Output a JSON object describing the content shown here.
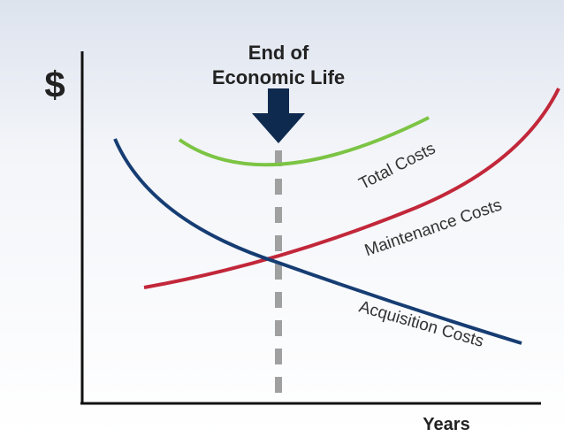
{
  "axis": {
    "y_label": "$",
    "x_label": "Years"
  },
  "marker": {
    "lines": [
      "End of",
      "Economic Life"
    ]
  },
  "curves": [
    {
      "label": "Total Costs"
    },
    {
      "label": "Maintenance Costs"
    },
    {
      "label": "Acquisition Costs"
    }
  ]
}
